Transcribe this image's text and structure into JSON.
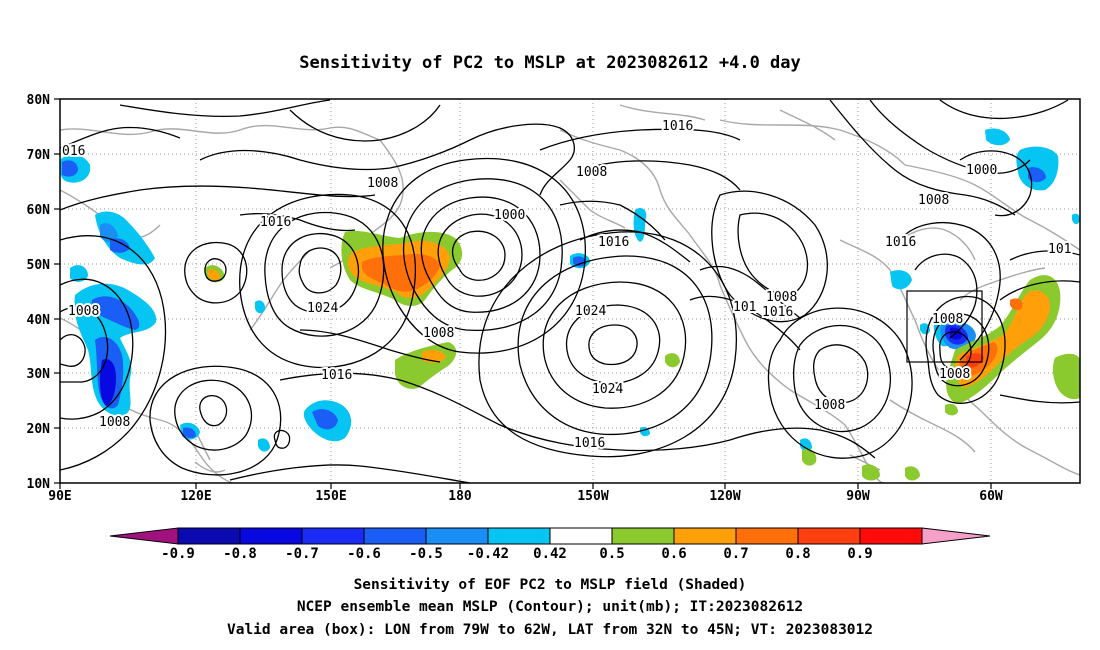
{
  "title": "Sensitivity of PC2 to MSLP at 2023082612 +4.0 day",
  "lat_ticks": [
    "80N",
    "70N",
    "60N",
    "50N",
    "40N",
    "30N",
    "20N",
    "10N"
  ],
  "lon_ticks": [
    "90E",
    "120E",
    "150E",
    "180",
    "150W",
    "120W",
    "90W",
    "60W"
  ],
  "contour_labels": [
    {
      "id": "c1",
      "text": "016"
    },
    {
      "id": "c2",
      "text": "1008"
    },
    {
      "id": "c3",
      "text": "1016"
    },
    {
      "id": "c4",
      "text": "1008"
    },
    {
      "id": "c5",
      "text": "1000"
    },
    {
      "id": "c6",
      "text": "1016"
    },
    {
      "id": "c7",
      "text": "1008"
    },
    {
      "id": "c8",
      "text": "1000"
    },
    {
      "id": "c9",
      "text": "1008"
    },
    {
      "id": "c10",
      "text": "1016"
    },
    {
      "id": "c11",
      "text": "101"
    },
    {
      "id": "c12",
      "text": "1016"
    },
    {
      "id": "c13",
      "text": "1008"
    },
    {
      "id": "c14",
      "text": "1016"
    },
    {
      "id": "c15",
      "text": "101"
    },
    {
      "id": "c16",
      "text": "1008"
    },
    {
      "id": "c17",
      "text": "1024"
    },
    {
      "id": "c18",
      "text": "1008"
    },
    {
      "id": "c19",
      "text": "1024"
    },
    {
      "id": "c20",
      "text": "1016"
    },
    {
      "id": "c21",
      "text": "1024"
    },
    {
      "id": "c22",
      "text": "1008"
    },
    {
      "id": "c23",
      "text": "1008"
    },
    {
      "id": "c24",
      "text": "1008"
    },
    {
      "id": "c25",
      "text": "1016"
    }
  ],
  "colorbar": {
    "labels": [
      "-0.9",
      "-0.8",
      "-0.7",
      "-0.6",
      "-0.5",
      "-0.42",
      "0.42",
      "0.5",
      "0.6",
      "0.7",
      "0.8",
      "0.9"
    ],
    "colors": [
      "#a0117f",
      "#0a0ab0",
      "#0808e0",
      "#1a2cf5",
      "#1a5ef5",
      "#1a8ef5",
      "#06c5f2",
      "#ffffff",
      "#8bca2e",
      "#ff9f0a",
      "#ff6f0a",
      "#ff3f10",
      "#ff0a0a",
      "#f5a0c8"
    ]
  },
  "caption": {
    "line1": "Sensitivity of EOF PC2 to MSLP field (Shaded)",
    "line2": "NCEP ensemble mean MSLP (Contour); unit(mb); IT:2023082612",
    "line3": "Valid area (box): LON from 79W to 62W, LAT from 32N to 45N; VT: 2023083012"
  }
}
